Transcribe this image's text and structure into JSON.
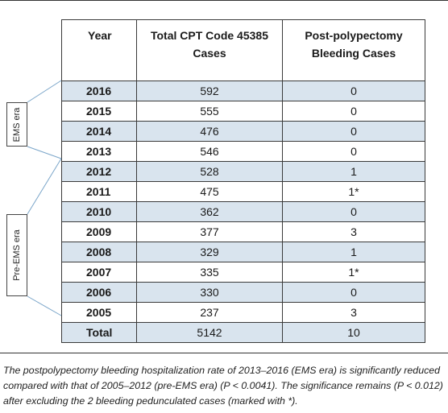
{
  "table": {
    "headers": {
      "year": "Year",
      "total_line1": "Total CPT Code 45385",
      "total_line2": "Cases",
      "bleeding_line1": "Post-polypectomy",
      "bleeding_line2": "Bleeding Cases"
    },
    "rows": [
      {
        "year": "2016",
        "total": "592",
        "bleeding": "0"
      },
      {
        "year": "2015",
        "total": "555",
        "bleeding": "0"
      },
      {
        "year": "2014",
        "total": "476",
        "bleeding": "0"
      },
      {
        "year": "2013",
        "total": "546",
        "bleeding": "0"
      },
      {
        "year": "2012",
        "total": "528",
        "bleeding": "1"
      },
      {
        "year": "2011",
        "total": "475",
        "bleeding": "1*"
      },
      {
        "year": "2010",
        "total": "362",
        "bleeding": "0"
      },
      {
        "year": "2009",
        "total": "377",
        "bleeding": "3"
      },
      {
        "year": "2008",
        "total": "329",
        "bleeding": "1"
      },
      {
        "year": "2007",
        "total": "335",
        "bleeding": "1*"
      },
      {
        "year": "2006",
        "total": "330",
        "bleeding": "0"
      },
      {
        "year": "2005",
        "total": "237",
        "bleeding": "3"
      },
      {
        "year": "Total",
        "total": "5142",
        "bleeding": "10"
      }
    ]
  },
  "eras": {
    "ems": "EMS era",
    "pre_ems": "Pre-EMS era"
  },
  "caption": "The postpolypectomy bleeding hospitalization rate of 2013–2016 (EMS era) is significantly reduced compared with that of 2005–2012 (pre-EMS era) (P < 0.0041). The significance remains (P < 0.012) after excluding the 2 bleeding pedunculated cases (marked with *).",
  "colors": {
    "row_shade": "#d9e4ee",
    "border": "#3a3a3a",
    "era_line": "#7aa5c9"
  }
}
